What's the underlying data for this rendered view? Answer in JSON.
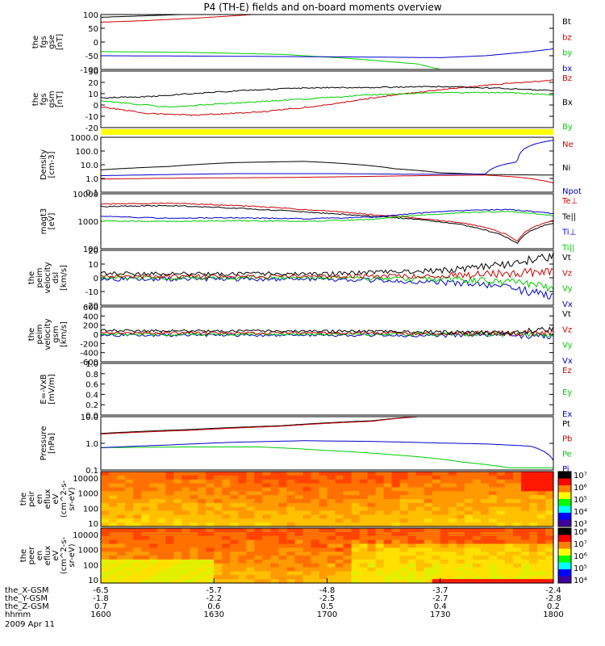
{
  "chart_data": {
    "type": "line",
    "title": "P4 (TH-E) fields and on-board moments overview",
    "panels": [
      {
        "id": "fgs-gse",
        "ylabel": [
          "the",
          "fgs",
          "gse",
          "[nT]"
        ],
        "yticks": [
          "100",
          "50",
          "0",
          "-50",
          "-100"
        ],
        "ylim": [
          -100,
          100
        ],
        "scale": "linear",
        "legend": [
          {
            "label": "Bt",
            "color": "#000000"
          },
          {
            "label": "bz",
            "color": "#cc0000"
          },
          {
            "label": "by",
            "color": "#00cc00"
          },
          {
            "label": "bx",
            "color": "#0000cc"
          }
        ],
        "series": [
          {
            "name": "Bt",
            "color": "#000000",
            "t": [
              0,
              0.5
            ],
            "v": [
              90,
              118
            ]
          },
          {
            "name": "bz",
            "color": "#cc0000",
            "t": [
              0,
              0.1,
              0.2,
              0.3,
              0.4,
              0.45
            ],
            "v": [
              72,
              78,
              86,
              96,
              108,
              120
            ]
          },
          {
            "name": "by",
            "color": "#00cc00",
            "t": [
              0,
              0.2,
              0.4,
              0.55,
              0.7,
              0.75
            ],
            "v": [
              -35,
              -38,
              -45,
              -60,
              -80,
              -100
            ]
          },
          {
            "name": "bx",
            "color": "#0000cc",
            "t": [
              0,
              0.3,
              0.6,
              0.75,
              0.85,
              0.95,
              1.0
            ],
            "v": [
              -50,
              -52,
              -55,
              -57,
              -50,
              -35,
              -25
            ]
          }
        ]
      },
      {
        "id": "fgs-gsm",
        "ylabel": [
          "the",
          "fgs",
          "gsm",
          "[nT]"
        ],
        "yticks": [
          "30",
          "20",
          "10",
          "0",
          "-10",
          "-20"
        ],
        "ylim": [
          -25,
          30
        ],
        "scale": "linear",
        "legend": [
          {
            "label": "Bz",
            "color": "#cc0000"
          },
          {
            "label": "Bx",
            "color": "#000000"
          },
          {
            "label": "By",
            "color": "#00cc00"
          }
        ],
        "series": [
          {
            "name": "Bz",
            "color": "#cc0000",
            "t": [
              0,
              0.1,
              0.2,
              0.35,
              0.5,
              0.6,
              0.75,
              0.9,
              1.0
            ],
            "v": [
              -5,
              -11,
              -13,
              -10,
              -3,
              4,
              12,
              18,
              21
            ]
          },
          {
            "name": "Bx",
            "color": "#000000",
            "t": [
              0,
              0.1,
              0.2,
              0.35,
              0.5,
              0.6,
              0.75,
              0.9,
              1.0
            ],
            "v": [
              4,
              5,
              8,
              12,
              14,
              14,
              15,
              13,
              11
            ]
          },
          {
            "name": "By",
            "color": "#00cc00",
            "t": [
              0,
              0.1,
              0.15,
              0.3,
              0.5,
              0.6,
              0.75,
              0.9,
              1.0
            ],
            "v": [
              1,
              -3,
              -5,
              -1,
              4,
              7,
              9,
              9,
              7
            ]
          }
        ]
      },
      {
        "id": "density",
        "ylabel": [
          "Density",
          "[cm-3]"
        ],
        "yticks": [
          "1000.0",
          "100.0",
          "10.0",
          "1.0",
          "0.1"
        ],
        "ylim": [
          0.1,
          1500
        ],
        "scale": "log",
        "legend": [
          {
            "label": "Ne",
            "color": "#cc0000"
          },
          {
            "label": "Ni",
            "color": "#000000"
          },
          {
            "label": "Npot",
            "color": "#0000cc"
          }
        ],
        "series": [
          {
            "name": "Ni",
            "color": "#000000",
            "t": [
              0,
              0.15,
              0.3,
              0.45,
              0.55,
              0.65,
              0.75,
              0.85,
              1.0
            ],
            "v": [
              5,
              9,
              18,
              22,
              14,
              6,
              3,
              2.2,
              2.0
            ]
          },
          {
            "name": "Ne",
            "color": "#cc0000",
            "t": [
              0,
              0.2,
              0.4,
              0.55,
              0.7,
              0.85,
              0.92,
              1.0
            ],
            "v": [
              1.0,
              1.2,
              1.3,
              1.5,
              1.8,
              2.0,
              1.4,
              0.5
            ]
          },
          {
            "name": "Npot",
            "color": "#0000cc",
            "t": [
              0,
              0.15,
              0.3,
              0.5,
              0.7,
              0.85,
              0.92,
              1.0
            ],
            "v": [
              1.8,
              2.2,
              2.6,
              2.6,
              2.3,
              2.4,
              20,
              900
            ]
          }
        ]
      },
      {
        "id": "temperature",
        "ylabel": [
          "magt3",
          "[eV]"
        ],
        "yticks": [
          "10000",
          "1000",
          "100"
        ],
        "ylim": [
          40,
          11000
        ],
        "scale": "log",
        "legend": [
          {
            "label": "Te⊥",
            "color": "#cc0000"
          },
          {
            "label": "Te||",
            "color": "#000000"
          },
          {
            "label": "Ti⊥",
            "color": "#0000cc"
          },
          {
            "label": "Ti||",
            "color": "#00cc00"
          }
        ],
        "series": [
          {
            "name": "Te⊥",
            "color": "#cc0000",
            "t": [
              0,
              0.15,
              0.3,
              0.45,
              0.6,
              0.7,
              0.8,
              0.86,
              0.92,
              1.0
            ],
            "v": [
              3800,
              4200,
              3300,
              2200,
              1300,
              900,
              550,
              300,
              80,
              700
            ]
          },
          {
            "name": "Te||",
            "color": "#000000",
            "t": [
              0,
              0.15,
              0.3,
              0.45,
              0.6,
              0.7,
              0.8,
              0.86,
              0.92,
              1.0
            ],
            "v": [
              3000,
              3300,
              2500,
              1700,
              1100,
              800,
              450,
              230,
              65,
              550
            ]
          },
          {
            "name": "Ti⊥",
            "color": "#0000cc",
            "t": [
              0,
              0.15,
              0.3,
              0.45,
              0.6,
              0.7,
              0.8,
              0.9,
              1.0
            ],
            "v": [
              1100,
              900,
              950,
              850,
              1000,
              1500,
              2000,
              2200,
              1500
            ]
          },
          {
            "name": "Ti||",
            "color": "#00cc00",
            "t": [
              0,
              0.15,
              0.3,
              0.45,
              0.6,
              0.7,
              0.8,
              0.9,
              1.0
            ],
            "v": [
              700,
              650,
              700,
              650,
              800,
              1200,
              1600,
              1800,
              1200
            ]
          }
        ]
      },
      {
        "id": "peim-velocity-dsl",
        "ylabel": [
          "the",
          "peim",
          "velocity",
          "dsl",
          "[km/s]"
        ],
        "yticks": [
          "20",
          "10",
          "0",
          "-10",
          "-20"
        ],
        "ylim": [
          -20,
          20
        ],
        "scale": "linear",
        "legend": [
          {
            "label": "Vt",
            "color": "#000000"
          },
          {
            "label": "Vz",
            "color": "#cc0000"
          },
          {
            "label": "Vy",
            "color": "#00cc00"
          },
          {
            "label": "Vx",
            "color": "#0000cc"
          }
        ],
        "series": [
          {
            "name": "Vx",
            "color": "#0000cc",
            "t": [
              0,
              0.5,
              0.75,
              0.9,
              1.0
            ],
            "v": [
              -1,
              -1,
              -3,
              -7,
              -14
            ]
          },
          {
            "name": "Vy",
            "color": "#00cc00",
            "t": [
              0,
              0.5,
              0.75,
              0.9,
              1.0
            ],
            "v": [
              0,
              0,
              -1,
              -3,
              -7
            ]
          },
          {
            "name": "Vz",
            "color": "#cc0000",
            "t": [
              0,
              0.5,
              0.75,
              0.9,
              1.0
            ],
            "v": [
              1,
              1,
              1.5,
              3,
              5
            ]
          },
          {
            "name": "Vt",
            "color": "#000000",
            "t": [
              0,
              0.5,
              0.75,
              0.9,
              1.0
            ],
            "v": [
              3,
              3,
              5,
              10,
              16
            ]
          }
        ]
      },
      {
        "id": "peim-velocity-gsm",
        "ylabel": [
          "the",
          "peim",
          "velocity",
          "gsm",
          "[km/s]"
        ],
        "yticks": [
          "600",
          "400",
          "200",
          "0",
          "-200",
          "-400",
          "-600"
        ],
        "ylim": [
          -600,
          600
        ],
        "scale": "linear",
        "legend": [
          {
            "label": "Vt",
            "color": "#000000"
          },
          {
            "label": "Vz",
            "color": "#cc0000"
          },
          {
            "label": "Vy",
            "color": "#00cc00"
          },
          {
            "label": "Vx",
            "color": "#0000cc"
          }
        ],
        "series": [
          {
            "name": "Vx",
            "color": "#0000cc",
            "t": [
              0,
              0.5,
              0.9,
              1.0
            ],
            "v": [
              -20,
              -20,
              -20,
              -60
            ]
          },
          {
            "name": "Vy",
            "color": "#00cc00",
            "t": [
              0,
              0.5,
              0.9,
              1.0
            ],
            "v": [
              0,
              0,
              0,
              -20
            ]
          },
          {
            "name": "Vz",
            "color": "#cc0000",
            "t": [
              0,
              0.5,
              0.9,
              1.0
            ],
            "v": [
              30,
              30,
              20,
              40
            ]
          },
          {
            "name": "Vt",
            "color": "#000000",
            "t": [
              0,
              0.5,
              0.9,
              1.0
            ],
            "v": [
              80,
              70,
              30,
              120
            ]
          }
        ]
      },
      {
        "id": "e-field",
        "ylabel": [
          "E=-VxB",
          "[mV/m]"
        ],
        "yticks": [
          "1.0",
          "0.8",
          "0.6",
          "0.4",
          "0.2",
          "0.0"
        ],
        "ylim": [
          0,
          1
        ],
        "scale": "linear",
        "legend": [
          {
            "label": "Ez",
            "color": "#cc0000"
          },
          {
            "label": "Ey",
            "color": "#00cc00"
          },
          {
            "label": "Ex",
            "color": "#0000cc"
          }
        ],
        "series": []
      },
      {
        "id": "pressure",
        "ylabel": [
          "Pressure",
          "[nPa]"
        ],
        "yticks": [
          "10.0",
          "1.0",
          "0.1"
        ],
        "ylim": [
          0.03,
          25
        ],
        "scale": "log",
        "legend": [
          {
            "label": "Pt",
            "color": "#000000"
          },
          {
            "label": "Pb",
            "color": "#cc0000"
          },
          {
            "label": "Pe",
            "color": "#00cc00"
          },
          {
            "label": "Pi",
            "color": "#0000cc"
          }
        ],
        "series": [
          {
            "name": "Pt",
            "color": "#000000",
            "t": [
              0,
              0.2,
              0.4,
              0.6,
              0.7
            ],
            "v": [
              3,
              5,
              8,
              15,
              25
            ]
          },
          {
            "name": "Pb",
            "color": "#cc0000",
            "t": [
              0,
              0.2,
              0.4,
              0.6,
              0.7
            ],
            "v": [
              2.8,
              4.5,
              7.5,
              14,
              25
            ]
          },
          {
            "name": "Pe",
            "color": "#00cc00",
            "t": [
              0,
              0.2,
              0.35,
              0.5,
              0.65,
              0.8,
              0.9,
              1.0
            ],
            "v": [
              0.5,
              0.55,
              0.55,
              0.35,
              0.2,
              0.08,
              0.04,
              0.04
            ]
          },
          {
            "name": "Pi",
            "color": "#0000cc",
            "t": [
              0,
              0.15,
              0.3,
              0.45,
              0.6,
              0.75,
              0.85,
              0.95,
              1.0
            ],
            "v": [
              0.5,
              0.7,
              1.0,
              1.2,
              1.1,
              0.9,
              0.8,
              0.6,
              0.1
            ]
          }
        ]
      },
      {
        "id": "peir-en-eflux",
        "type": "heatmap",
        "ylabel": [
          "the",
          "peir",
          "en",
          "eflux",
          "eV",
          "(cm^2-s-",
          "sr-eV)"
        ],
        "yticks": [
          "10000",
          "1000",
          "100",
          "10"
        ],
        "colorbar_ticks": [
          "10⁷",
          "10⁶",
          "10⁵",
          "10⁴",
          "10³"
        ]
      },
      {
        "id": "peer-en-eflux",
        "type": "heatmap",
        "ylabel": [
          "the",
          "peer",
          "en",
          "eflux",
          "eV",
          "(cm^2-s-",
          "sr-eV)"
        ],
        "yticks": [
          "10000",
          "1000",
          "100",
          "10"
        ],
        "colorbar_ticks": [
          "10⁸",
          "10⁷",
          "10⁶",
          "10⁵",
          "10⁴"
        ]
      }
    ],
    "xaxis": {
      "rows": [
        {
          "label": "the_X-GSM",
          "values": [
            "-6.5",
            "-5.7",
            "-4.8",
            "-3.7",
            "-2.4"
          ]
        },
        {
          "label": "the_Y-GSM",
          "values": [
            "-1.8",
            "-2.2",
            "-2.5",
            "-2.7",
            "-2.8"
          ]
        },
        {
          "label": "the_Z-GSM",
          "values": [
            "0.7",
            "0.6",
            "0.5",
            "0.4",
            "0.2"
          ]
        },
        {
          "label": "hhmm",
          "values": [
            "1600",
            "1630",
            "1700",
            "1730",
            "1800"
          ]
        }
      ],
      "date": "2009 Apr 11"
    }
  }
}
